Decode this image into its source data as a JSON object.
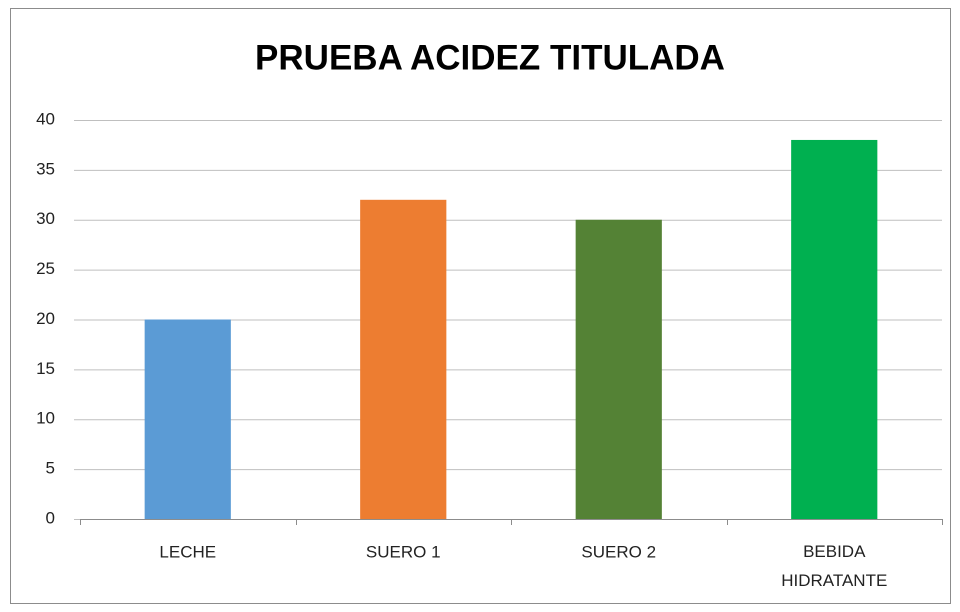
{
  "chart_data": {
    "type": "bar",
    "title": "PRUEBA ACIDEZ TITULADA",
    "categories": [
      "LECHE",
      "SUERO 1",
      "SUERO 2",
      "BEBIDA HIDRATANTE"
    ],
    "values": [
      20,
      32,
      30,
      38
    ],
    "colors": [
      "#5b9bd5",
      "#ed7d31",
      "#548235",
      "#00b050"
    ],
    "ylim": [
      0,
      40
    ],
    "yticks": [
      0,
      5,
      10,
      15,
      20,
      25,
      30,
      35,
      40
    ],
    "grid": true
  }
}
